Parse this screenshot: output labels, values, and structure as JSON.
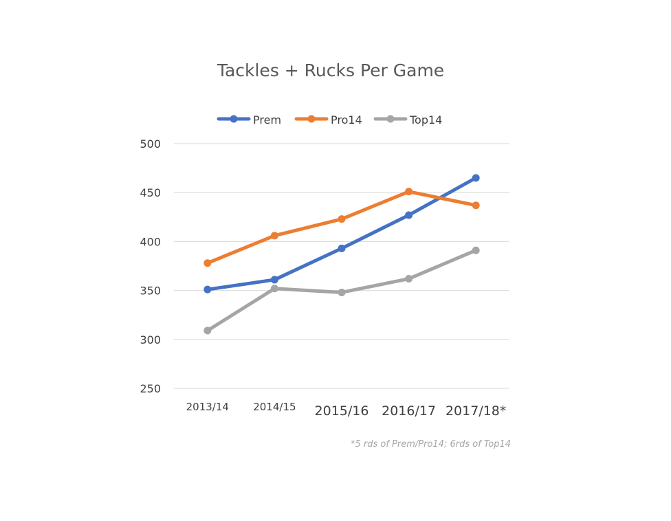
{
  "chart_data": {
    "type": "line",
    "title": "Tackles + Rucks Per Game",
    "xlabel": "",
    "ylabel": "",
    "categories": [
      "2013/14",
      "2014/15",
      "2015/16",
      "2016/17",
      "2017/18*"
    ],
    "ylim": [
      250,
      500
    ],
    "yticks": [
      "250",
      "300",
      "350",
      "400",
      "450",
      "500"
    ],
    "grid": true,
    "legend_position": "top",
    "series": [
      {
        "name": "Prem",
        "color": "#4472c4",
        "values": [
          351,
          361,
          393,
          427,
          465
        ]
      },
      {
        "name": "Pro14",
        "color": "#ed7d31",
        "values": [
          378,
          406,
          423,
          451,
          437
        ]
      },
      {
        "name": "Top14",
        "color": "#a5a5a5",
        "values": [
          309,
          352,
          348,
          362,
          391
        ]
      }
    ],
    "footnote": "*5 rds of Prem/Pro14; 6rds of Top14"
  }
}
